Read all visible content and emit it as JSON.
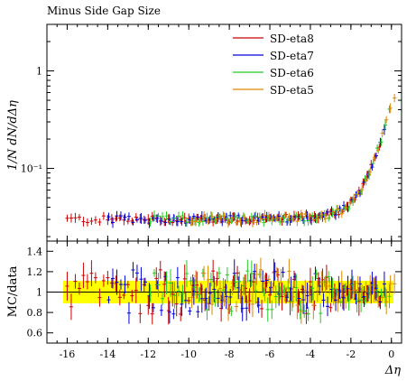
{
  "chart_data": {
    "type": "scatter",
    "title": "Minus Side Gap Size",
    "xlabel": "Δη",
    "top_panel": {
      "ylabel": "1/N dN/dΔη",
      "yscale": "log",
      "ylim": [
        0.018,
        3.0
      ],
      "y_ticks": [
        {
          "value": 0.1,
          "label": "10⁻¹"
        },
        {
          "value": 1,
          "label": "1"
        }
      ]
    },
    "ratio_panel": {
      "ylabel": "MC/data",
      "ylim": [
        0.5,
        1.5
      ],
      "y_ticks": [
        {
          "value": 0.6,
          "label": "0.6"
        },
        {
          "value": 0.8,
          "label": "0.8"
        },
        {
          "value": 1.0,
          "label": "1"
        },
        {
          "value": 1.2,
          "label": "1.2"
        },
        {
          "value": 1.4,
          "label": "1.4"
        }
      ],
      "band_color": "#ffff00"
    },
    "xlim": [
      -17,
      0.5
    ],
    "x_ticks": [
      {
        "value": -16,
        "label": "-16"
      },
      {
        "value": -14,
        "label": "-14"
      },
      {
        "value": -12,
        "label": "-12"
      },
      {
        "value": -10,
        "label": "-10"
      },
      {
        "value": -8,
        "label": "-8"
      },
      {
        "value": -6,
        "label": "-6"
      },
      {
        "value": -4,
        "label": "-4"
      },
      {
        "value": -2,
        "label": "-2"
      },
      {
        "value": 0,
        "label": "0"
      }
    ],
    "legend": {
      "placement": "top-right"
    },
    "series": [
      {
        "name": "SD-eta8",
        "color": "#cc0000",
        "x_start": -16.0,
        "x_end": -0.6
      },
      {
        "name": "SD-eta7",
        "color": "#0000dd",
        "x_start": -14.0,
        "x_end": -0.4
      },
      {
        "name": "SD-eta6",
        "color": "#22cc22",
        "x_start": -12.0,
        "x_end": -0.2
      },
      {
        "name": "SD-eta5",
        "color": "#dd8800",
        "x_start": -10.0,
        "x_end": 0.0
      }
    ]
  }
}
